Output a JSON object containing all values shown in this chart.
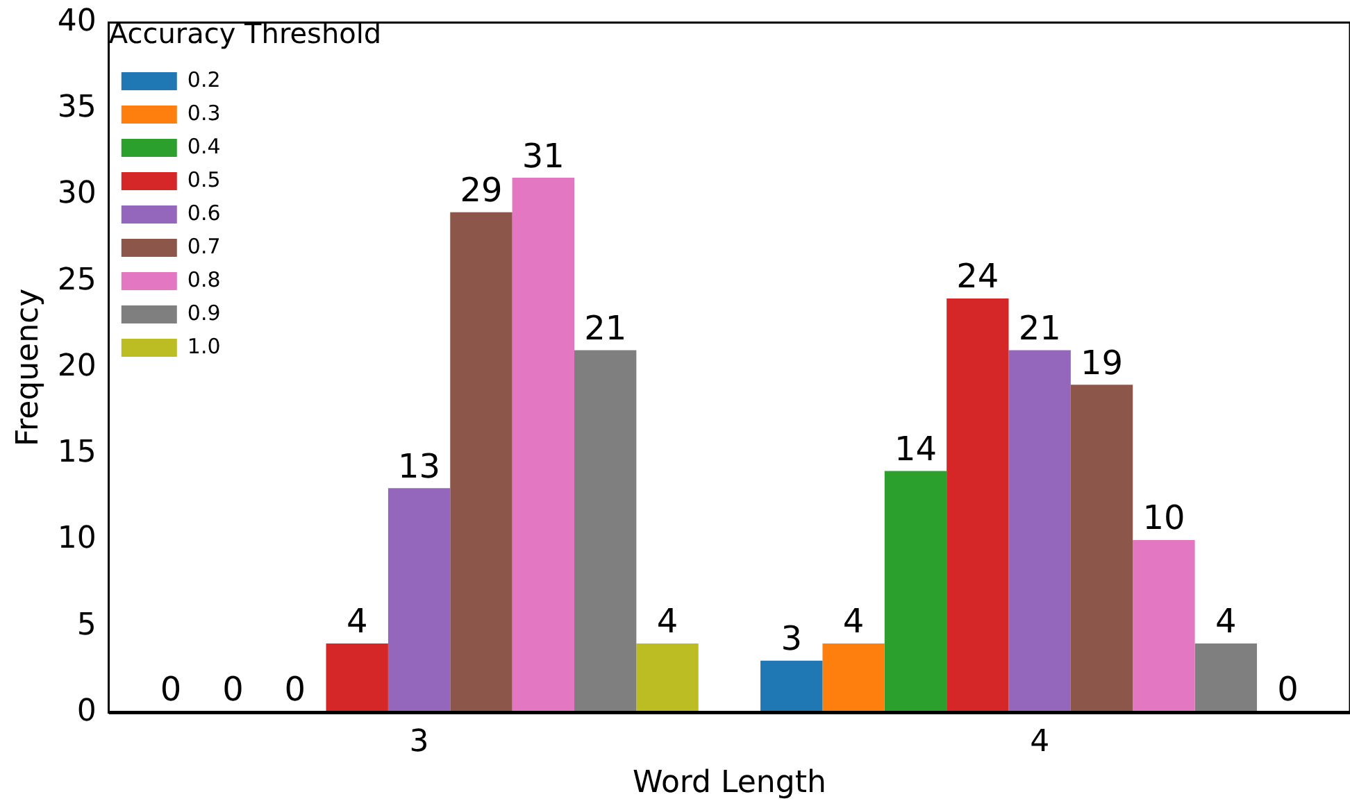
{
  "chart_data": {
    "type": "bar",
    "xlabel": "Word Length",
    "ylabel": "Frequency",
    "legend_title": "Accuracy Threshold",
    "categories": [
      "3",
      "4"
    ],
    "series": [
      {
        "name": "0.2",
        "color": "#1f77b4",
        "values": [
          0,
          3
        ]
      },
      {
        "name": "0.3",
        "color": "#ff7f0e",
        "values": [
          0,
          4
        ]
      },
      {
        "name": "0.4",
        "color": "#2ca02c",
        "values": [
          0,
          14
        ]
      },
      {
        "name": "0.5",
        "color": "#d62728",
        "values": [
          4,
          24
        ]
      },
      {
        "name": "0.6",
        "color": "#9467bd",
        "values": [
          13,
          21
        ]
      },
      {
        "name": "0.7",
        "color": "#8c564b",
        "values": [
          29,
          19
        ]
      },
      {
        "name": "0.8",
        "color": "#e377c2",
        "values": [
          31,
          10
        ]
      },
      {
        "name": "0.9",
        "color": "#7f7f7f",
        "values": [
          21,
          4
        ]
      },
      {
        "name": "1.0",
        "color": "#bcbd22",
        "values": [
          4,
          0
        ]
      }
    ],
    "ylim": [
      0,
      40
    ],
    "yticks": [
      0,
      5,
      10,
      15,
      20,
      25,
      30,
      35,
      40
    ],
    "grid": false,
    "legend": "top left",
    "data_labels": true
  }
}
